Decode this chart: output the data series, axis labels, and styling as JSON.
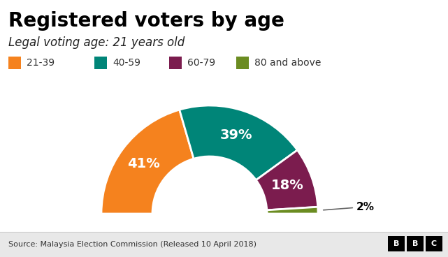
{
  "title": "Registered voters by age",
  "subtitle": "Legal voting age: 21 years old",
  "source": "Source: Malaysia Election Commission (Released 10 April 2018)",
  "categories": [
    "21-39",
    "40-59",
    "60-79",
    "80 and above"
  ],
  "values": [
    41,
    39,
    18,
    2
  ],
  "colors": [
    "#F5821E",
    "#008578",
    "#7B1C4E",
    "#6B8C21"
  ],
  "labels": [
    "41%",
    "39%",
    "18%",
    "2%"
  ],
  "label_colors": [
    "white",
    "white",
    "white",
    "black"
  ],
  "background_color": "#ffffff",
  "footer_bg": "#e8e8e8",
  "title_fontsize": 20,
  "subtitle_fontsize": 12,
  "legend_fontsize": 10,
  "pct_fontsize": 14
}
